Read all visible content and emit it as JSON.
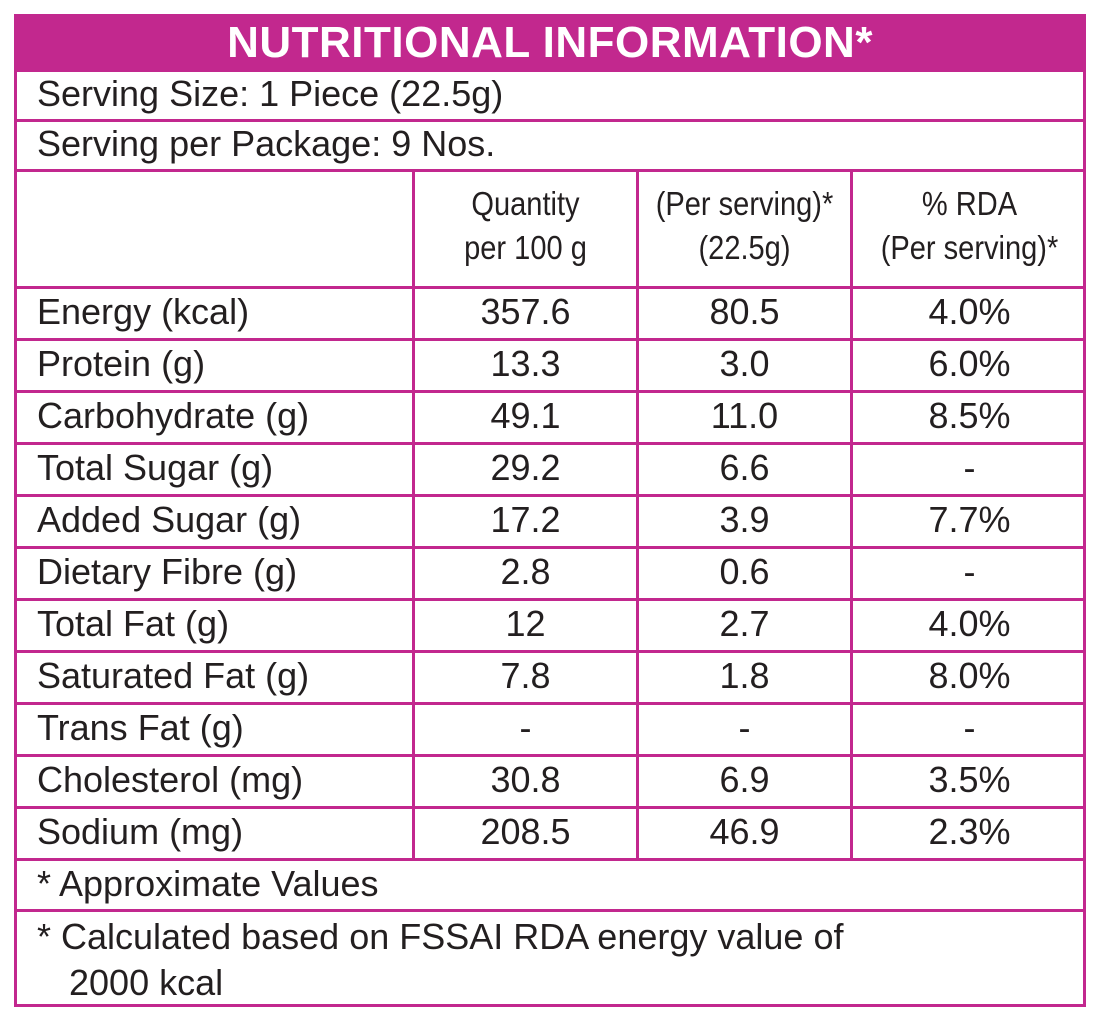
{
  "title": "NUTRITIONAL INFORMATION*",
  "serving_size": "Serving Size: 1 Piece (22.5g)",
  "serving_per_package": "Serving per Package: 9 Nos.",
  "columns": {
    "c1_line1": "Quantity",
    "c1_line2": "per 100 g",
    "c2_line1": "(Per serving)*",
    "c2_line2": "(22.5g)",
    "c3_line1": "% RDA",
    "c3_line2": "(Per serving)*"
  },
  "rows": [
    {
      "label": "Energy (kcal)",
      "per100": "357.6",
      "per_serving": "80.5",
      "rda": "4.0%"
    },
    {
      "label": "Protein (g)",
      "per100": "13.3",
      "per_serving": "3.0",
      "rda": "6.0%"
    },
    {
      "label": "Carbohydrate (g)",
      "per100": "49.1",
      "per_serving": "11.0",
      "rda": "8.5%"
    },
    {
      "label": "Total Sugar (g)",
      "per100": "29.2",
      "per_serving": "6.6",
      "rda": "-"
    },
    {
      "label": "Added Sugar (g)",
      "per100": "17.2",
      "per_serving": "3.9",
      "rda": "7.7%"
    },
    {
      "label": "Dietary Fibre (g)",
      "per100": "2.8",
      "per_serving": "0.6",
      "rda": "-"
    },
    {
      "label": "Total Fat (g)",
      "per100": "12",
      "per_serving": "2.7",
      "rda": "4.0%"
    },
    {
      "label": "Saturated Fat (g)",
      "per100": "7.8",
      "per_serving": "1.8",
      "rda": "8.0%"
    },
    {
      "label": "Trans Fat (g)",
      "per100": "-",
      "per_serving": "-",
      "rda": "-"
    },
    {
      "label": "Cholesterol (mg)",
      "per100": "30.8",
      "per_serving": "6.9",
      "rda": "3.5%"
    },
    {
      "label": "Sodium (mg)",
      "per100": "208.5",
      "per_serving": "46.9",
      "rda": "2.3%"
    }
  ],
  "footnote_1": "* Approximate Values",
  "footnote_2_line1": "* Calculated based on FSSAI RDA energy value of",
  "footnote_2_line2": "2000 kcal",
  "colors": {
    "accent": "#c2288e",
    "text": "#231f20"
  }
}
